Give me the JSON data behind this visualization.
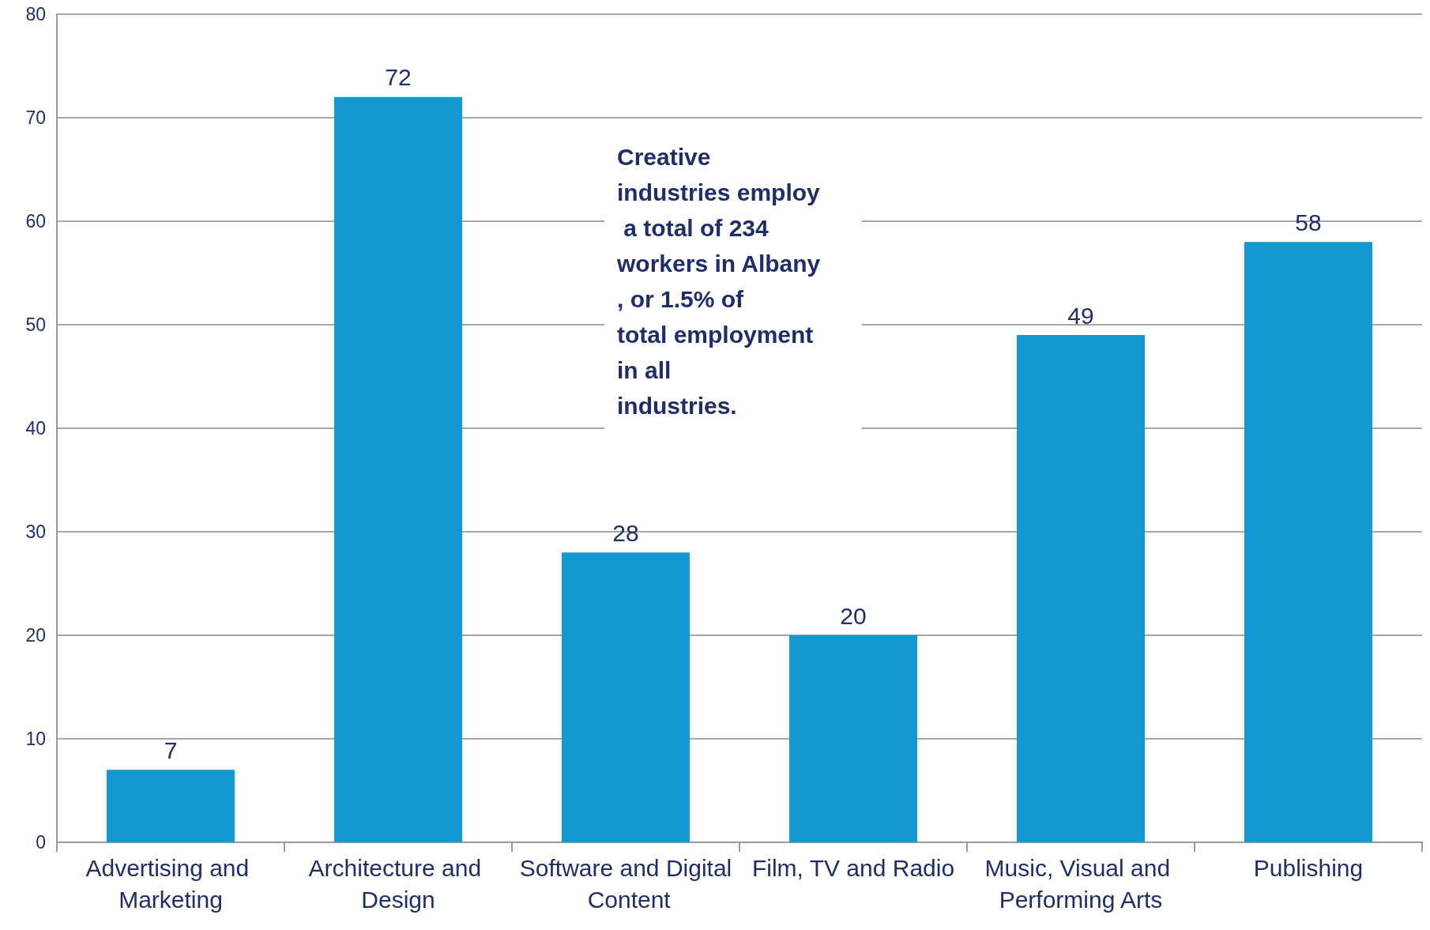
{
  "chart_data": {
    "type": "bar",
    "categories": [
      "Advertising and Marketing",
      "Architecture and Design",
      "Software and Digital Content",
      "Film, TV and Radio",
      "Music, Visual and Performing Arts",
      "Publishing"
    ],
    "values": [
      7,
      72,
      28,
      20,
      49,
      58
    ],
    "color": "#1399d0",
    "ylim": [
      0,
      80
    ],
    "yticks": [
      0,
      10,
      20,
      30,
      40,
      50,
      60,
      70,
      80
    ],
    "grid": "y",
    "data_labels": true,
    "annotations": [
      "Creative industries employ a total of 234 workers in Albany, or 1.5% of total employment in all industries."
    ]
  }
}
